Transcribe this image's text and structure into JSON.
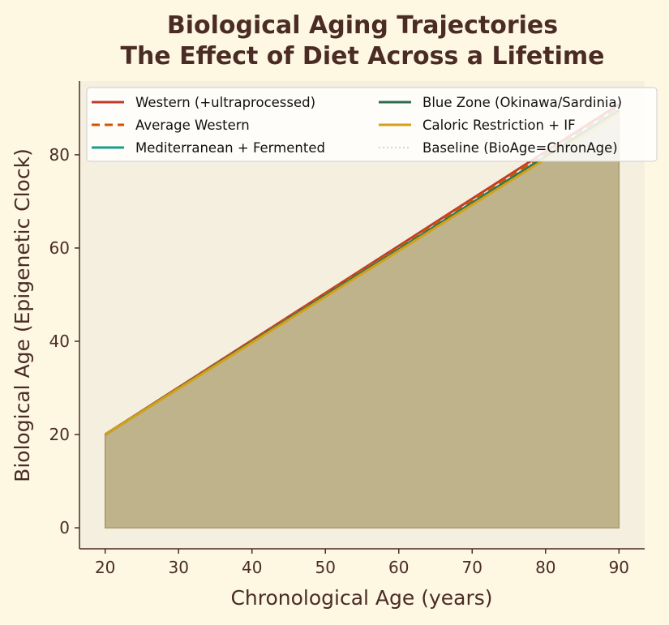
{
  "chart_data": {
    "type": "line",
    "title": "Biological Aging Trajectories\nThe Effect of Diet Across a Lifetime",
    "title_lines": [
      "Biological Aging Trajectories",
      "The Effect of Diet Across a Lifetime"
    ],
    "xlabel": "Chronological Age (years)",
    "ylabel": "Biological Age (Epigenetic Clock)",
    "xlim": [
      16.5,
      93.5
    ],
    "ylim": [
      -4.5,
      95.8
    ],
    "xticks": [
      20,
      30,
      40,
      50,
      60,
      70,
      80,
      90
    ],
    "yticks": [
      0,
      20,
      40,
      60,
      80
    ],
    "grid": false,
    "legend_placement": "top",
    "x": [
      20,
      90
    ],
    "series": [
      {
        "name": "Western (+ultraprocessed)",
        "values": [
          20,
          90.8
        ],
        "color": "#c0392b",
        "dash": "solid"
      },
      {
        "name": "Average Western",
        "values": [
          20,
          90.3
        ],
        "color": "#d35400",
        "dash": "dashed"
      },
      {
        "name": "Mediterranean + Fermented",
        "values": [
          20,
          89.6
        ],
        "color": "#16a085",
        "dash": "solid"
      },
      {
        "name": "Blue Zone (Okinawa/Sardinia)",
        "values": [
          20,
          89.4
        ],
        "color": "#2e6b4a",
        "dash": "solid"
      },
      {
        "name": "Caloric Restriction + IF",
        "values": [
          20,
          89.0
        ],
        "color": "#d4a017",
        "dash": "solid"
      },
      {
        "name": "Baseline (BioAge=ChronAge)",
        "values": [
          20,
          90
        ],
        "color": "#bbbbbb",
        "dash": "dotted"
      }
    ],
    "fill": {
      "color": "#bfb38b",
      "between": "Caloric Restriction + IF and 0"
    },
    "colors": {
      "figure_bg": "#fef8e3",
      "axes_bg": "#f5efdf",
      "text": "#4a2c25"
    }
  }
}
